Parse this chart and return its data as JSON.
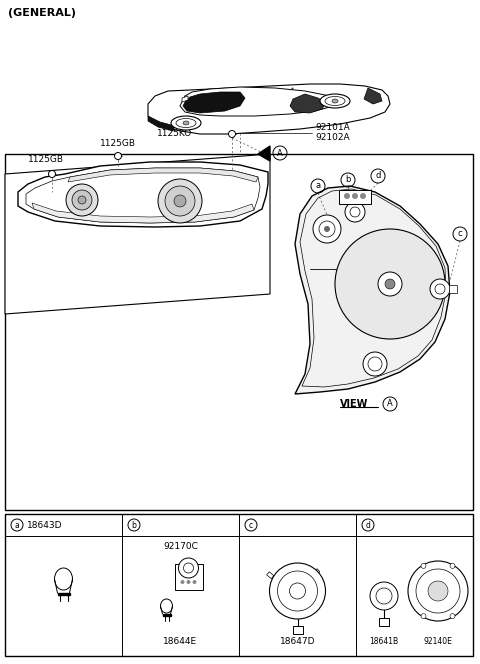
{
  "bg_color": "#ffffff",
  "figsize": [
    4.8,
    6.64
  ],
  "dpi": 100,
  "labels": {
    "general": "(GENERAL)",
    "1125KO": "1125KO",
    "92101A": "92101A",
    "92102A": "92102A",
    "1125GB_1": "1125GB",
    "1125GB_2": "1125GB",
    "view_a": "VIEW",
    "A_circle": "A",
    "a": "a",
    "b": "b",
    "c": "c",
    "d": "d",
    "18643D": "18643D",
    "92170C": "92170C",
    "18644E": "18644E",
    "18647D": "18647D",
    "18641B": "18641B",
    "92140E": "92140E"
  }
}
